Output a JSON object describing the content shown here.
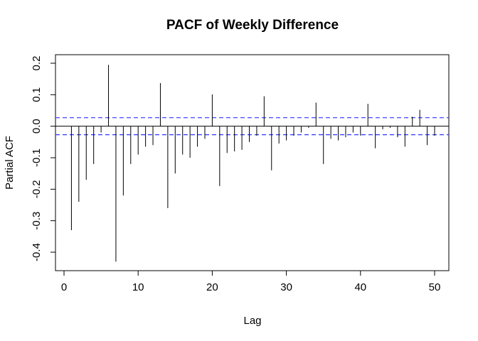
{
  "chart_data": {
    "type": "bar",
    "title": "PACF of Weekly Difference",
    "xlabel": "Lag",
    "ylabel": "Partial ACF",
    "xlim": [
      0,
      51
    ],
    "ylim": [
      -0.44,
      0.22
    ],
    "xticks": [
      0,
      10,
      20,
      30,
      40,
      50
    ],
    "yticks": [
      -0.4,
      -0.3,
      -0.2,
      -0.1,
      0.0,
      0.1,
      0.2
    ],
    "ytick_labels": [
      "-0.4",
      "-0.3",
      "-0.2",
      "-0.1",
      "0.0",
      "0.1",
      "0.2"
    ],
    "ci_bound": 0.027,
    "ci_color": "#3333ff",
    "grid": false,
    "lags": [
      1,
      2,
      3,
      4,
      5,
      6,
      7,
      8,
      9,
      10,
      11,
      12,
      13,
      14,
      15,
      16,
      17,
      18,
      19,
      20,
      21,
      22,
      23,
      24,
      25,
      26,
      27,
      28,
      29,
      30,
      31,
      32,
      33,
      34,
      35,
      36,
      37,
      38,
      39,
      40,
      41,
      42,
      43,
      44,
      45,
      46,
      47,
      48,
      49,
      50
    ],
    "values": [
      -0.33,
      -0.24,
      -0.17,
      -0.12,
      -0.02,
      0.195,
      -0.43,
      -0.22,
      -0.12,
      -0.09,
      -0.065,
      -0.06,
      0.137,
      -0.26,
      -0.15,
      -0.09,
      -0.1,
      -0.065,
      -0.04,
      0.101,
      -0.19,
      -0.085,
      -0.08,
      -0.075,
      -0.05,
      -0.03,
      0.095,
      -0.14,
      -0.055,
      -0.045,
      -0.03,
      -0.02,
      -0.005,
      0.075,
      -0.12,
      -0.04,
      -0.045,
      -0.035,
      -0.02,
      -0.03,
      0.071,
      -0.07,
      -0.01,
      -0.005,
      -0.035,
      -0.065,
      0.03,
      0.052,
      -0.06,
      -0.03
    ]
  }
}
